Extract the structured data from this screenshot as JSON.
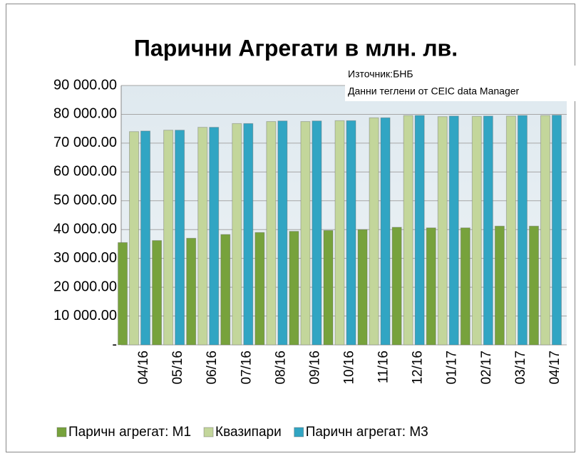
{
  "chart_data": {
    "type": "bar",
    "title": "Парични Агрегати в млн. лв.",
    "annotations": [
      "Източник:БНБ",
      "Данни теглени от CEIC data Manager"
    ],
    "categories": [
      "04/16",
      "05/16",
      "06/16",
      "07/16",
      "08/16",
      "09/16",
      "10/16",
      "11/16",
      "12/16",
      "01/17",
      "02/17",
      "03/17",
      "04/17"
    ],
    "series": [
      {
        "name": "Паричн агрегат: М1",
        "color": "#77a23c",
        "values": [
          35500,
          36200,
          37000,
          38300,
          39000,
          39400,
          39700,
          40000,
          40800,
          40600,
          40600,
          41200,
          41200
        ]
      },
      {
        "name": "Квазипари",
        "color": "#c3d69b",
        "values": [
          74000,
          74500,
          75500,
          76800,
          77500,
          77500,
          77800,
          78800,
          79600,
          79200,
          79300,
          79400,
          79600
        ]
      },
      {
        "name": "Паричн агрегат: М3",
        "color": "#31a5c3",
        "values": [
          74200,
          74500,
          75500,
          76800,
          77700,
          77700,
          77800,
          78800,
          79600,
          79400,
          79400,
          79600,
          79700
        ]
      }
    ],
    "ylim": [
      0,
      90000
    ],
    "yticks": [
      {
        "value": 0,
        "label": "-"
      },
      {
        "value": 10000,
        "label": "10 000.00"
      },
      {
        "value": 20000,
        "label": "20 000.00"
      },
      {
        "value": 30000,
        "label": "30 000.00"
      },
      {
        "value": 40000,
        "label": "40 000.00"
      },
      {
        "value": 50000,
        "label": "50 000.00"
      },
      {
        "value": 60000,
        "label": "60 000.00"
      },
      {
        "value": 70000,
        "label": "70 000.00"
      },
      {
        "value": 80000,
        "label": "80 000.00"
      },
      {
        "value": 90000,
        "label": "90 000.00"
      }
    ],
    "grid": true,
    "legend": "bottom"
  }
}
